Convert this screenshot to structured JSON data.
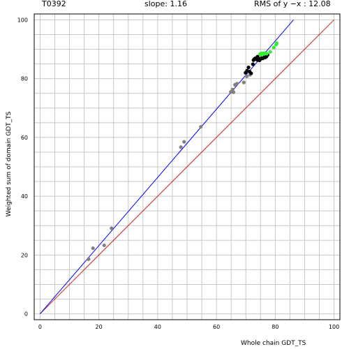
{
  "header": {
    "target": "T0392",
    "slope": "slope: 1.16",
    "rms": "RMS of  y −x : 12.08"
  },
  "chart_data": {
    "type": "scatter",
    "title": "",
    "xlabel": "Whole chain GDT_TS",
    "ylabel": "Weighted sum of domain GDT_TS",
    "xlim": [
      -2,
      102
    ],
    "ylim": [
      -2,
      102
    ],
    "xticks": [
      0,
      20,
      40,
      60,
      80,
      100
    ],
    "yticks": [
      0,
      20,
      40,
      60,
      80,
      100
    ],
    "grid": true,
    "colors": {
      "gray": "#808080",
      "black": "#000000",
      "green": "#33ee33",
      "fit_line": "#0000ff",
      "identity_line": "#cc2222",
      "grid": "#c8c8c8"
    },
    "fit_line": {
      "slope": 1.16,
      "intercept": 0
    },
    "identity_line": {
      "slope": 1,
      "intercept": 0
    },
    "series": [
      {
        "color": "gray",
        "points": [
          [
            16.5,
            18.6
          ],
          [
            18.0,
            22.3
          ],
          [
            21.8,
            23.3
          ],
          [
            24.3,
            29.1
          ],
          [
            47.9,
            56.7
          ],
          [
            49.0,
            58.5
          ],
          [
            54.7,
            63.6
          ],
          [
            64.9,
            75.5
          ],
          [
            65.5,
            76.3
          ],
          [
            65.8,
            75.4
          ],
          [
            66.3,
            77.9
          ],
          [
            67.0,
            78.3
          ],
          [
            69.3,
            78.7
          ],
          [
            70.3,
            80.8
          ],
          [
            71.4,
            81.3
          ]
        ]
      },
      {
        "color": "black",
        "points": [
          [
            69.9,
            82.0
          ],
          [
            70.4,
            82.7
          ],
          [
            70.9,
            83.8
          ],
          [
            71.3,
            82.4
          ],
          [
            71.8,
            81.8
          ],
          [
            72.4,
            84.9
          ],
          [
            72.6,
            86.3
          ],
          [
            72.9,
            86.7
          ],
          [
            73.2,
            86.9
          ],
          [
            73.8,
            86.4
          ],
          [
            74.0,
            87.5
          ],
          [
            74.3,
            86.9
          ],
          [
            74.6,
            86.2
          ],
          [
            75.1,
            86.7
          ],
          [
            75.5,
            87.2
          ],
          [
            75.8,
            86.9
          ],
          [
            76.1,
            87.6
          ],
          [
            76.6,
            87.2
          ],
          [
            77.0,
            87.5
          ],
          [
            77.4,
            88.1
          ]
        ]
      },
      {
        "color": "green",
        "points": [
          [
            74.8,
            88.3
          ],
          [
            75.2,
            88.6
          ],
          [
            75.5,
            88.1
          ],
          [
            75.9,
            88.6
          ],
          [
            76.2,
            88.4
          ],
          [
            76.6,
            88.7
          ],
          [
            77.1,
            88.5
          ],
          [
            78.3,
            89.1
          ],
          [
            79.5,
            90.6
          ],
          [
            80.3,
            91.6
          ],
          [
            80.5,
            92.1
          ]
        ]
      }
    ]
  }
}
